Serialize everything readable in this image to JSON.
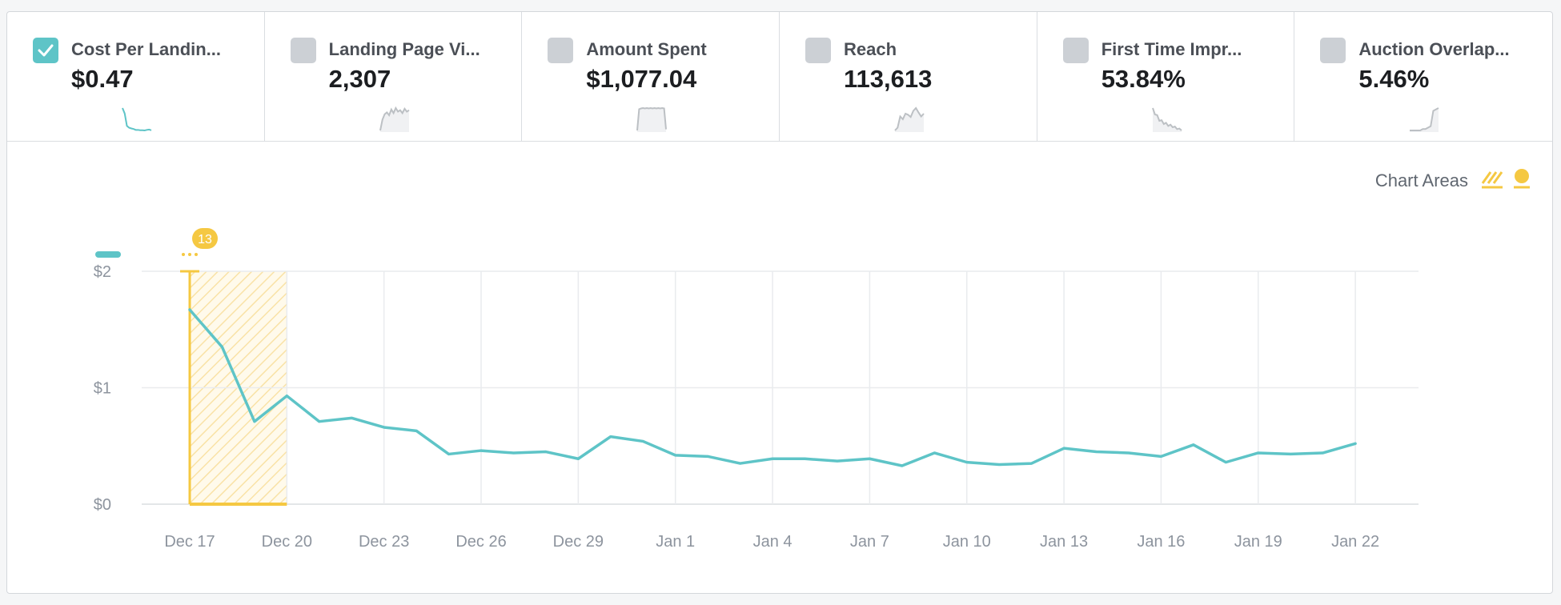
{
  "metrics": [
    {
      "name": "Cost Per Landing Page View",
      "display_name": "Cost Per Landin...",
      "value": "$0.47",
      "checked": true,
      "sparkline": [
        1.7,
        1.4,
        0.72,
        0.62,
        0.58,
        0.55,
        0.5,
        0.5,
        0.48,
        0.48,
        0.47,
        0.5,
        0.52,
        0.48
      ]
    },
    {
      "name": "Landing Page Views",
      "display_name": "Landing Page Vi...",
      "value": "2,307",
      "checked": false,
      "sparkline": [
        10,
        40,
        55,
        60,
        52,
        68,
        58,
        72,
        62,
        66,
        58,
        70,
        62,
        66
      ]
    },
    {
      "name": "Amount Spent",
      "display_name": "Amount Spent",
      "value": "$1,077.04",
      "checked": false,
      "sparkline": [
        5,
        60,
        62,
        63,
        62,
        63,
        62,
        63,
        62,
        63,
        62,
        63,
        62,
        63,
        62,
        8
      ]
    },
    {
      "name": "Reach",
      "display_name": "Reach",
      "value": "113,613",
      "checked": false,
      "sparkline": [
        20,
        25,
        45,
        40,
        50,
        48,
        44,
        55,
        60,
        52,
        45,
        50
      ]
    },
    {
      "name": "First Time Impression Ratio",
      "display_name": "First Time Impr...",
      "value": "53.84%",
      "checked": false,
      "sparkline": [
        80,
        60,
        58,
        40,
        42,
        30,
        34,
        24,
        28,
        20,
        22,
        14,
        16,
        10
      ]
    },
    {
      "name": "Auction Overlap Rate",
      "display_name": "Auction Overlap...",
      "value": "5.46%",
      "checked": false,
      "sparkline": [
        2,
        2,
        2,
        2,
        2,
        4,
        4,
        6,
        8,
        30,
        32,
        34
      ]
    }
  ],
  "legend": {
    "label": "Chart Areas"
  },
  "colors": {
    "line": "#5ec4c7",
    "highlight": "#f5c842",
    "grid": "#e9ebee",
    "tick": "#8d949e"
  },
  "chart_data": {
    "type": "line",
    "series": [
      {
        "name": "Cost Per Landing Page View",
        "values": [
          1.67,
          1.35,
          0.71,
          0.93,
          0.71,
          0.74,
          0.66,
          0.63,
          0.43,
          0.46,
          0.44,
          0.45,
          0.39,
          0.58,
          0.54,
          0.42,
          0.41,
          0.35,
          0.39,
          0.39,
          0.37,
          0.39,
          0.33,
          0.44,
          0.36,
          0.34,
          0.35,
          0.48,
          0.45,
          0.44,
          0.41,
          0.51,
          0.36,
          0.44,
          0.43,
          0.44,
          0.52
        ]
      }
    ],
    "start_date": "2018-12-17",
    "x_tick_labels": [
      "Dec 17",
      "Dec 20",
      "Dec 23",
      "Dec 26",
      "Dec 29",
      "Jan 1",
      "Jan 4",
      "Jan 7",
      "Jan 10",
      "Jan 13",
      "Jan 16",
      "Jan 19",
      "Jan 22"
    ],
    "x_tick_step": 3,
    "y_ticks": [
      0,
      1,
      2
    ],
    "y_tick_labels": [
      "$0",
      "$1",
      "$2"
    ],
    "ylim": [
      0,
      2
    ],
    "grid": true,
    "legend_position": "top-right",
    "highlighted_area": {
      "start": "Dec 17",
      "end": "Dec 20",
      "badge": "13"
    }
  }
}
